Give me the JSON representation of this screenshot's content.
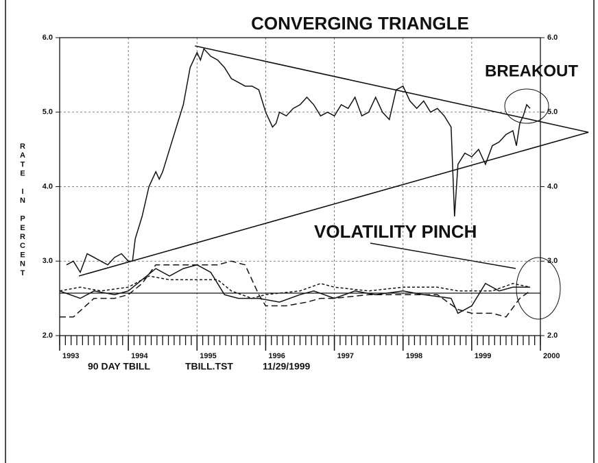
{
  "chart_data": {
    "type": "line",
    "title": "CONVERGING TRIANGLE",
    "annotations": [
      "BREAKOUT",
      "VOLATILITY PINCH"
    ],
    "ylabel": "RATE IN PERCENT",
    "footer": [
      "90 DAY TBILL",
      "TBILL.TST",
      "11/29/1999"
    ],
    "xlim": [
      1993,
      2000
    ],
    "xticks": [
      1993,
      1994,
      1995,
      1996,
      1997,
      1998,
      1999,
      2000
    ],
    "ylim": [
      2,
      6
    ],
    "yticks": [
      {
        "value": 2,
        "label": "2.0"
      },
      {
        "value": 3,
        "label": "3.0"
      },
      {
        "value": 4,
        "label": "4.0"
      },
      {
        "value": 5,
        "label": "5.0"
      },
      {
        "value": 6,
        "label": "6.0"
      }
    ],
    "grid": true,
    "color": "#111111",
    "series": [
      {
        "dash": "none",
        "x": [
          1993.1,
          1993.2,
          1993.3,
          1993.4,
          1993.5,
          1993.6,
          1993.7,
          1993.8,
          1993.9,
          1994.0,
          1994.06,
          1994.1,
          1994.2,
          1994.3,
          1994.4,
          1994.45,
          1994.5,
          1994.6,
          1994.7,
          1994.8,
          1994.9,
          1995.0,
          1995.05,
          1995.1,
          1995.2,
          1995.3,
          1995.4,
          1995.5,
          1995.6,
          1995.7,
          1995.8,
          1995.9,
          1996.0,
          1996.1,
          1996.15,
          1996.2,
          1996.3,
          1996.4,
          1996.5,
          1996.6,
          1996.7,
          1996.8,
          1996.9,
          1997.0,
          1997.1,
          1997.2,
          1997.3,
          1997.4,
          1997.5,
          1997.6,
          1997.7,
          1997.8,
          1997.9,
          1998.0,
          1998.1,
          1998.2,
          1998.3,
          1998.4,
          1998.5,
          1998.6,
          1998.7,
          1998.75,
          1998.8,
          1998.9,
          1999.0,
          1999.1,
          1999.2,
          1999.3,
          1999.4,
          1999.5,
          1999.6,
          1999.65,
          1999.7,
          1999.75,
          1999.8,
          1999.85
        ],
        "values": [
          2.95,
          3.0,
          2.85,
          3.1,
          3.05,
          3.0,
          2.95,
          3.05,
          3.1,
          3.0,
          3.0,
          3.3,
          3.6,
          4.0,
          4.2,
          4.1,
          4.2,
          4.5,
          4.8,
          5.1,
          5.6,
          5.8,
          5.7,
          5.85,
          5.75,
          5.7,
          5.6,
          5.45,
          5.4,
          5.35,
          5.35,
          5.3,
          5.0,
          4.8,
          4.85,
          5.0,
          4.95,
          5.05,
          5.1,
          5.2,
          5.1,
          4.95,
          5.0,
          4.95,
          5.1,
          5.05,
          5.2,
          4.95,
          5.0,
          5.2,
          5.0,
          4.9,
          5.3,
          5.35,
          5.15,
          5.05,
          5.15,
          5.0,
          5.05,
          4.95,
          4.8,
          3.6,
          4.3,
          4.45,
          4.4,
          4.5,
          4.3,
          4.55,
          4.6,
          4.7,
          4.75,
          4.55,
          4.85,
          4.95,
          5.1,
          5.05
        ]
      },
      {
        "dash": "none",
        "x": [
          1993.0,
          1993.3,
          1993.5,
          1993.8,
          1994.0,
          1994.2,
          1994.4,
          1994.6,
          1994.8,
          1995.0,
          1995.2,
          1995.4,
          1995.6,
          1995.9,
          1996.2,
          1996.5,
          1996.7,
          1997.0,
          1997.3,
          1997.6,
          1998.0,
          1998.3,
          1998.7,
          1998.8,
          1999.0,
          1999.2,
          1999.4,
          1999.6,
          1999.85
        ],
        "values": [
          2.6,
          2.5,
          2.6,
          2.55,
          2.6,
          2.75,
          2.9,
          2.8,
          2.9,
          2.95,
          2.85,
          2.55,
          2.5,
          2.5,
          2.45,
          2.55,
          2.6,
          2.5,
          2.6,
          2.55,
          2.6,
          2.55,
          2.5,
          2.3,
          2.4,
          2.7,
          2.6,
          2.65,
          2.65
        ]
      },
      {
        "dash": "9 5",
        "x": [
          1993.0,
          1993.2,
          1993.5,
          1993.8,
          1994.0,
          1994.2,
          1994.4,
          1994.8,
          1995.0,
          1995.3,
          1995.5,
          1995.7,
          1995.9,
          1996.0,
          1996.3,
          1996.6,
          1996.8,
          1997.0,
          1997.5,
          1998.0,
          1998.5,
          1998.8,
          1999.0,
          1999.3,
          1999.5,
          1999.7,
          1999.85
        ],
        "values": [
          2.25,
          2.25,
          2.5,
          2.5,
          2.55,
          2.7,
          2.95,
          2.95,
          2.95,
          2.95,
          3.0,
          2.95,
          2.55,
          2.4,
          2.4,
          2.45,
          2.5,
          2.5,
          2.55,
          2.55,
          2.55,
          2.35,
          2.3,
          2.3,
          2.25,
          2.5,
          2.6
        ]
      },
      {
        "dash": "4 3",
        "x": [
          1993.0,
          1993.3,
          1993.6,
          1994.0,
          1994.3,
          1994.6,
          1995.0,
          1995.3,
          1995.5,
          1995.8,
          1996.0,
          1996.5,
          1996.8,
          1997.0,
          1997.5,
          1998.0,
          1998.5,
          1998.8,
          1999.0,
          1999.3,
          1999.6,
          1999.85
        ],
        "values": [
          2.6,
          2.65,
          2.6,
          2.65,
          2.8,
          2.75,
          2.75,
          2.75,
          2.6,
          2.5,
          2.55,
          2.6,
          2.7,
          2.65,
          2.6,
          2.65,
          2.65,
          2.6,
          2.6,
          2.6,
          2.7,
          2.65
        ]
      }
    ],
    "trendlines": [
      {
        "x": [
          1994.97,
          2000.7
        ],
        "values": [
          5.89,
          4.73
        ]
      },
      {
        "x": [
          1993.28,
          2000.7
        ],
        "values": [
          2.8,
          4.73
        ]
      }
    ],
    "hlines": [
      2.57
    ]
  }
}
